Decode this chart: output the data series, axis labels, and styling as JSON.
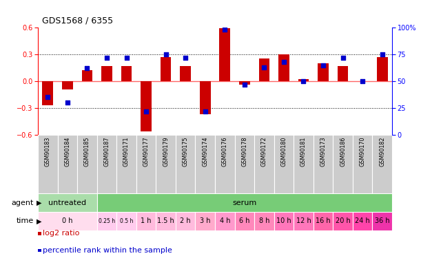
{
  "title": "GDS1568 / 6355",
  "samples": [
    "GSM90183",
    "GSM90184",
    "GSM90185",
    "GSM90187",
    "GSM90171",
    "GSM90177",
    "GSM90179",
    "GSM90175",
    "GSM90174",
    "GSM90176",
    "GSM90178",
    "GSM90172",
    "GSM90180",
    "GSM90181",
    "GSM90173",
    "GSM90186",
    "GSM90170",
    "GSM90182"
  ],
  "log2_ratio": [
    -0.27,
    -0.09,
    0.12,
    0.17,
    0.17,
    -0.56,
    0.27,
    0.17,
    -0.37,
    0.59,
    -0.04,
    0.25,
    0.3,
    0.02,
    0.2,
    0.17,
    0.0,
    0.27
  ],
  "percentile": [
    35,
    30,
    62,
    72,
    72,
    22,
    75,
    72,
    22,
    98,
    47,
    63,
    68,
    50,
    65,
    72,
    50,
    75
  ],
  "ylim_left": [
    -0.6,
    0.6
  ],
  "ylim_right": [
    0,
    100
  ],
  "yticks_left": [
    -0.6,
    -0.3,
    0.0,
    0.3,
    0.6
  ],
  "yticks_right": [
    0,
    25,
    50,
    75,
    100
  ],
  "ytick_labels_right": [
    "0",
    "25",
    "50",
    "75",
    "100%"
  ],
  "bar_color": "#cc0000",
  "dot_color": "#0000cc",
  "zero_line_color": "#ff6666",
  "dotted_line_color": "#000000",
  "agent_untreated_color": "#aaddaa",
  "agent_serum_color": "#77cc77",
  "sample_col_color": "#cccccc",
  "legend_bar": "log2 ratio",
  "legend_dot": "percentile rank within the sample",
  "agent_groups": [
    {
      "label": "untreated",
      "start": 0,
      "end": 3
    },
    {
      "label": "serum",
      "start": 3,
      "end": 18
    }
  ],
  "time_spans": [
    {
      "label": "0 h",
      "start": 0,
      "end": 3,
      "color": "#ffddee"
    },
    {
      "label": "0.25 h",
      "start": 3,
      "end": 4,
      "color": "#ffccee"
    },
    {
      "label": "0.5 h",
      "start": 4,
      "end": 5,
      "color": "#ffccee"
    },
    {
      "label": "1 h",
      "start": 5,
      "end": 6,
      "color": "#ffbbdd"
    },
    {
      "label": "1.5 h",
      "start": 6,
      "end": 7,
      "color": "#ffbbdd"
    },
    {
      "label": "2 h",
      "start": 7,
      "end": 8,
      "color": "#ffbbdd"
    },
    {
      "label": "3 h",
      "start": 8,
      "end": 9,
      "color": "#ffaacc"
    },
    {
      "label": "4 h",
      "start": 9,
      "end": 10,
      "color": "#ff99cc"
    },
    {
      "label": "6 h",
      "start": 10,
      "end": 11,
      "color": "#ff88bb"
    },
    {
      "label": "8 h",
      "start": 11,
      "end": 12,
      "color": "#ff88bb"
    },
    {
      "label": "10 h",
      "start": 12,
      "end": 13,
      "color": "#ff77bb"
    },
    {
      "label": "12 h",
      "start": 13,
      "end": 14,
      "color": "#ff77bb"
    },
    {
      "label": "16 h",
      "start": 14,
      "end": 15,
      "color": "#ff66aa"
    },
    {
      "label": "20 h",
      "start": 15,
      "end": 16,
      "color": "#ff55aa"
    },
    {
      "label": "24 h",
      "start": 16,
      "end": 17,
      "color": "#ff44aa"
    },
    {
      "label": "36 h",
      "start": 17,
      "end": 18,
      "color": "#ee33aa"
    }
  ]
}
